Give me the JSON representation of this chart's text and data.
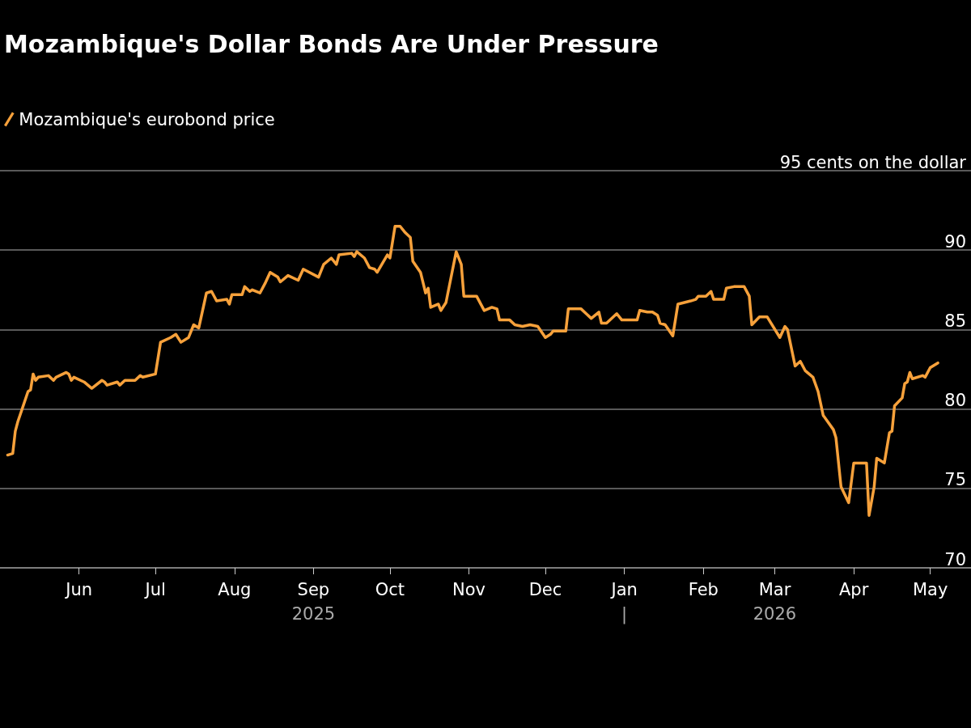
{
  "chart_data": {
    "type": "line",
    "title": "Mozambique's Dollar Bonds Are Under Pressure",
    "x": [
      "2025-05-04",
      "2025-05-06",
      "2025-05-07",
      "2025-05-08",
      "2025-05-12",
      "2025-05-13",
      "2025-05-14",
      "2025-05-15",
      "2025-05-16",
      "2025-05-20",
      "2025-05-22",
      "2025-05-23",
      "2025-05-27",
      "2025-05-28",
      "2025-05-29",
      "2025-05-30",
      "2025-06-03",
      "2025-06-06",
      "2025-06-10",
      "2025-06-11",
      "2025-06-12",
      "2025-06-16",
      "2025-06-17",
      "2025-06-19",
      "2025-06-23",
      "2025-06-25",
      "2025-06-26",
      "2025-07-01",
      "2025-07-03",
      "2025-07-07",
      "2025-07-09",
      "2025-07-11",
      "2025-07-14",
      "2025-07-16",
      "2025-07-18",
      "2025-07-21",
      "2025-07-23",
      "2025-07-25",
      "2025-07-29",
      "2025-07-30",
      "2025-07-31",
      "2025-08-04",
      "2025-08-05",
      "2025-08-07",
      "2025-08-08",
      "2025-08-11",
      "2025-08-13",
      "2025-08-15",
      "2025-08-18",
      "2025-08-19",
      "2025-08-22",
      "2025-08-26",
      "2025-08-28",
      "2025-09-03",
      "2025-09-05",
      "2025-09-08",
      "2025-09-10",
      "2025-09-11",
      "2025-09-16",
      "2025-09-17",
      "2025-09-18",
      "2025-09-21",
      "2025-09-23",
      "2025-09-25",
      "2025-09-26",
      "2025-09-30",
      "2025-10-01",
      "2025-10-03",
      "2025-10-05",
      "2025-10-07",
      "2025-10-09",
      "2025-10-10",
      "2025-10-13",
      "2025-10-15",
      "2025-10-16",
      "2025-10-17",
      "2025-10-20",
      "2025-10-21",
      "2025-10-23",
      "2025-10-27",
      "2025-10-29",
      "2025-10-30",
      "2025-11-04",
      "2025-11-07",
      "2025-11-10",
      "2025-11-12",
      "2025-11-13",
      "2025-11-17",
      "2025-11-19",
      "2025-11-22",
      "2025-11-25",
      "2025-11-28",
      "2025-12-01",
      "2025-12-03",
      "2025-12-04",
      "2025-12-09",
      "2025-12-10",
      "2025-12-15",
      "2025-12-17",
      "2025-12-19",
      "2025-12-22",
      "2025-12-23",
      "2025-12-25",
      "2025-12-29",
      "2025-12-31",
      "2026-01-06",
      "2026-01-07",
      "2026-01-10",
      "2026-01-12",
      "2026-01-14",
      "2026-01-15",
      "2026-01-17",
      "2026-01-20",
      "2026-01-22",
      "2026-01-27",
      "2026-01-29",
      "2026-01-30",
      "2026-02-02",
      "2026-02-04",
      "2026-02-05",
      "2026-02-09",
      "2026-02-10",
      "2026-02-13",
      "2026-02-17",
      "2026-02-19",
      "2026-02-20",
      "2026-02-23",
      "2026-02-26",
      "2026-03-03",
      "2026-03-05",
      "2026-03-06",
      "2026-03-09",
      "2026-03-11",
      "2026-03-13",
      "2026-03-16",
      "2026-03-18",
      "2026-03-20",
      "2026-03-24",
      "2026-03-25",
      "2026-03-27",
      "2026-03-30",
      "2026-04-01",
      "2026-04-06",
      "2026-04-07",
      "2026-04-09",
      "2026-04-10",
      "2026-04-13",
      "2026-04-15",
      "2026-04-16",
      "2026-04-17",
      "2026-04-20",
      "2026-04-21",
      "2026-04-22",
      "2026-04-23",
      "2026-04-24",
      "2026-04-28",
      "2026-04-29",
      "2026-05-01",
      "2026-05-04"
    ],
    "series": [
      {
        "name": "Mozambique's eurobond price",
        "color": "#f7a13b",
        "values": [
          77.1,
          77.2,
          78.6,
          79.2,
          81.1,
          81.2,
          82.2,
          81.8,
          82.0,
          82.1,
          81.8,
          82.0,
          82.3,
          82.2,
          81.8,
          82.0,
          81.7,
          81.3,
          81.8,
          81.7,
          81.5,
          81.7,
          81.5,
          81.8,
          81.8,
          82.1,
          82.0,
          82.2,
          84.2,
          84.5,
          84.7,
          84.2,
          84.5,
          85.3,
          85.1,
          87.3,
          87.4,
          86.8,
          86.9,
          86.6,
          87.2,
          87.2,
          87.7,
          87.4,
          87.5,
          87.3,
          87.9,
          88.6,
          88.3,
          88.0,
          88.4,
          88.1,
          88.8,
          88.3,
          89.1,
          89.5,
          89.1,
          89.7,
          89.8,
          89.6,
          89.9,
          89.5,
          88.9,
          88.8,
          88.6,
          89.7,
          89.5,
          91.5,
          91.5,
          91.1,
          90.8,
          89.3,
          88.6,
          87.3,
          87.6,
          86.4,
          86.6,
          86.2,
          86.7,
          89.9,
          89.1,
          87.1,
          87.1,
          86.2,
          86.4,
          86.3,
          85.6,
          85.6,
          85.3,
          85.2,
          85.3,
          85.2,
          84.5,
          84.7,
          84.9,
          84.9,
          86.3,
          86.3,
          86.0,
          85.7,
          86.1,
          85.4,
          85.4,
          86.0,
          85.6,
          85.6,
          86.2,
          86.1,
          86.1,
          85.9,
          85.4,
          85.3,
          84.6,
          86.6,
          86.8,
          86.9,
          87.1,
          87.1,
          87.4,
          86.9,
          86.9,
          87.6,
          87.7,
          87.7,
          87.1,
          85.3,
          85.8,
          85.8,
          84.5,
          85.2,
          85.0,
          82.7,
          83.0,
          82.4,
          82.0,
          81.1,
          79.6,
          78.7,
          78.2,
          75.1,
          74.1,
          76.6,
          76.6,
          73.3,
          75.1,
          76.9,
          76.6,
          78.5,
          78.6,
          80.2,
          80.7,
          81.6,
          81.7,
          82.3,
          81.9,
          82.1,
          82.0,
          82.6,
          82.9
        ]
      }
    ],
    "xlim": [
      "2025-05-01",
      "2026-05-17"
    ],
    "xticks": [
      {
        "value": "2025-06-01",
        "label": "Jun"
      },
      {
        "value": "2025-07-01",
        "label": "Jul"
      },
      {
        "value": "2025-08-01",
        "label": "Aug"
      },
      {
        "value": "2025-09-01",
        "label": "Sep\n2025"
      },
      {
        "value": "2025-10-01",
        "label": "Oct"
      },
      {
        "value": "2025-11-01",
        "label": "Nov"
      },
      {
        "value": "2025-12-01",
        "label": "Dec"
      },
      {
        "value": "2026-01-01",
        "label": "Jan\n|"
      },
      {
        "value": "2026-02-01",
        "label": "Feb"
      },
      {
        "value": "2026-03-01",
        "label": "Mar\n2026"
      },
      {
        "value": "2026-04-01",
        "label": "Apr"
      },
      {
        "value": "2026-05-01",
        "label": "May"
      }
    ],
    "ylim": [
      70,
      95
    ],
    "yticks": [
      70,
      75,
      80,
      85,
      90,
      {
        "value": 95,
        "label": "95 cents on the dollar"
      }
    ],
    "grid": "y",
    "legend": "top left",
    "marker": "none",
    "line_style": "solid"
  }
}
